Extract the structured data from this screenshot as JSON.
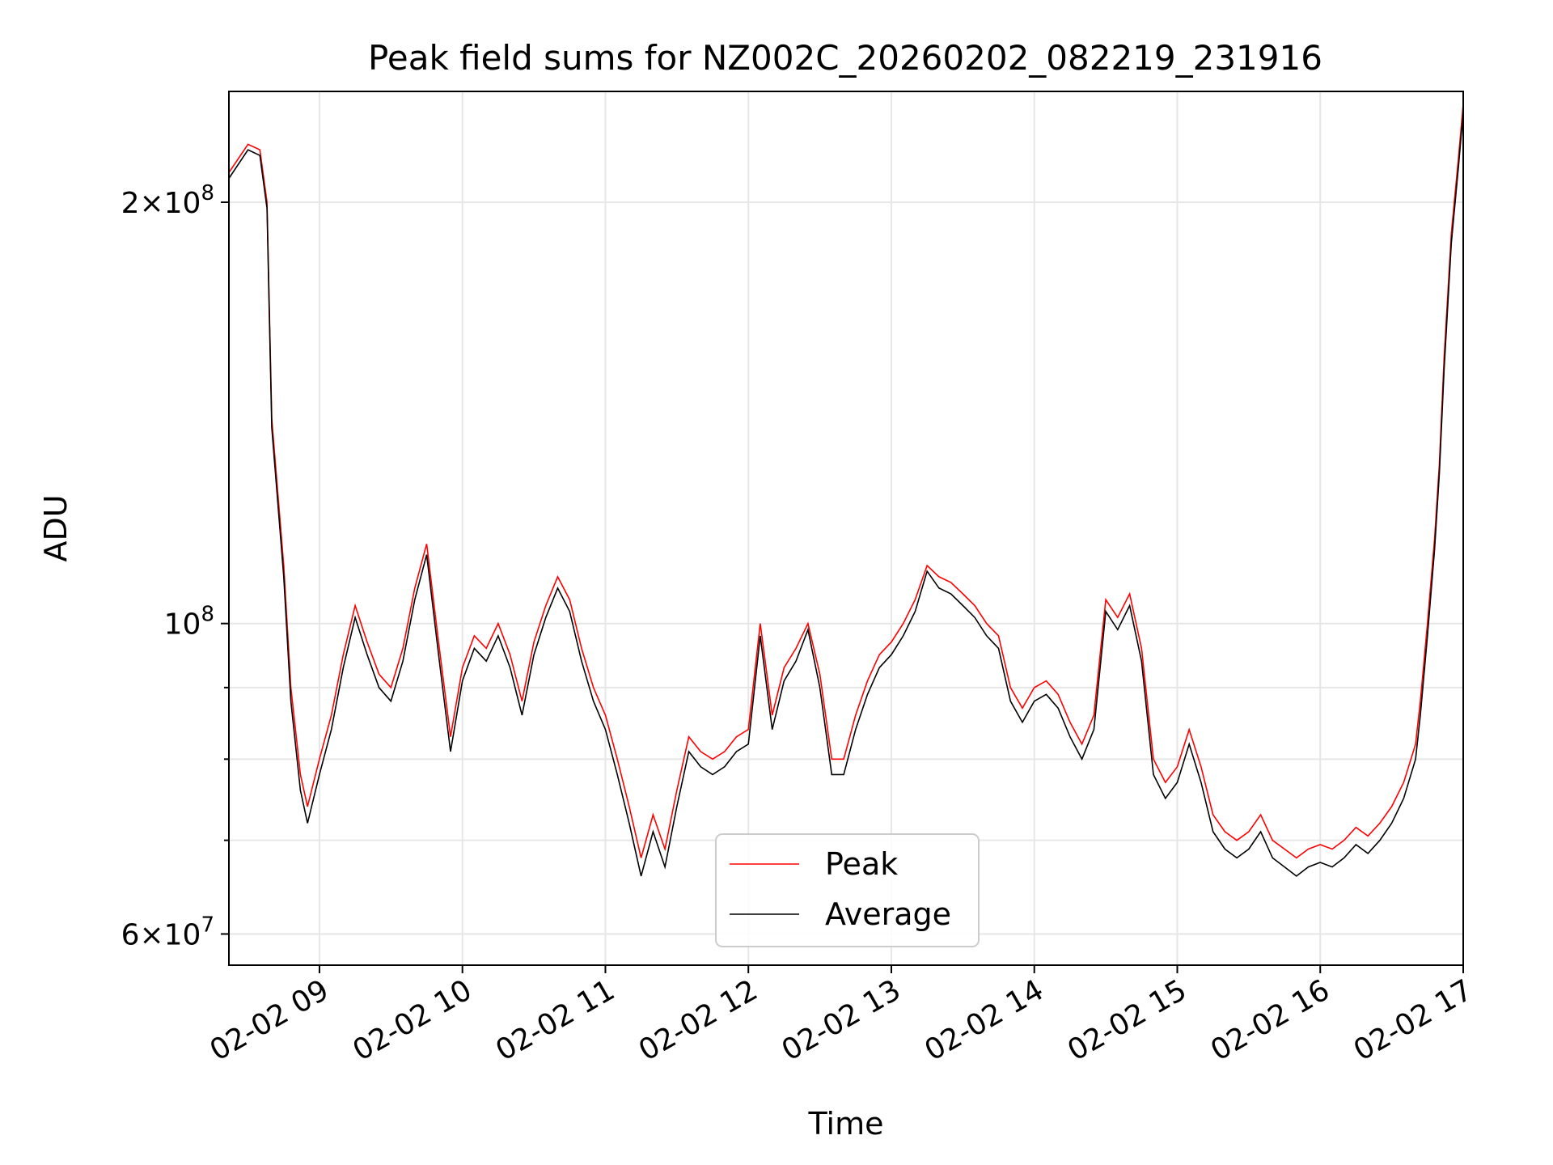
{
  "chart_data": {
    "type": "line",
    "title": "Peak field sums for NZ002C_20260202_082219_231916",
    "xlabel": "Time",
    "ylabel": "ADU",
    "xlim": [
      "2026-02-02 08:22",
      "2026-02-02 17:00"
    ],
    "ylim": [
      57000000,
      240000000
    ],
    "yscale": "log",
    "grid": true,
    "legend_position": "bottom-center",
    "x_tick_labels": [
      "02-02 09",
      "02-02 10",
      "02-02 11",
      "02-02 12",
      "02-02 13",
      "02-02 14",
      "02-02 15",
      "02-02 16",
      "02-02 17"
    ],
    "y_tick_labels": [
      "2×10^8",
      "10^8",
      "6×10^7"
    ],
    "x": [
      "08:22",
      "08:30",
      "08:35",
      "08:38",
      "08:40",
      "08:45",
      "08:48",
      "08:52",
      "08:55",
      "09:00",
      "09:05",
      "09:10",
      "09:15",
      "09:20",
      "09:25",
      "09:30",
      "09:35",
      "09:40",
      "09:45",
      "09:50",
      "09:55",
      "10:00",
      "10:05",
      "10:10",
      "10:15",
      "10:20",
      "10:25",
      "10:30",
      "10:35",
      "10:40",
      "10:45",
      "10:50",
      "10:55",
      "11:00",
      "11:05",
      "11:10",
      "11:15",
      "11:20",
      "11:25",
      "11:30",
      "11:35",
      "11:40",
      "11:45",
      "11:50",
      "11:55",
      "12:00",
      "12:05",
      "12:10",
      "12:15",
      "12:20",
      "12:25",
      "12:30",
      "12:35",
      "12:40",
      "12:45",
      "12:50",
      "12:55",
      "13:00",
      "13:05",
      "13:10",
      "13:15",
      "13:20",
      "13:25",
      "13:30",
      "13:35",
      "13:40",
      "13:45",
      "13:50",
      "13:55",
      "14:00",
      "14:05",
      "14:10",
      "14:15",
      "14:20",
      "14:25",
      "14:30",
      "14:35",
      "14:40",
      "14:45",
      "14:50",
      "14:55",
      "15:00",
      "15:05",
      "15:10",
      "15:15",
      "15:20",
      "15:25",
      "15:30",
      "15:35",
      "15:40",
      "15:45",
      "15:50",
      "15:55",
      "16:00",
      "16:05",
      "16:10",
      "16:15",
      "16:20",
      "16:25",
      "16:30",
      "16:35",
      "16:40",
      "16:42",
      "16:45",
      "16:48",
      "16:50",
      "16:52",
      "16:55",
      "16:58",
      "17:00"
    ],
    "series": [
      {
        "name": "Peak",
        "color": "#ff0000",
        "values": [
          210000000,
          220000000,
          218000000,
          200000000,
          140000000,
          110000000,
          90000000,
          78000000,
          74000000,
          80000000,
          86000000,
          95000000,
          103000000,
          97000000,
          92000000,
          90000000,
          96000000,
          106000000,
          114000000,
          97000000,
          83000000,
          93000000,
          98000000,
          96000000,
          100000000,
          95000000,
          88000000,
          97000000,
          103000000,
          108000000,
          104000000,
          96000000,
          90000000,
          86000000,
          80000000,
          74000000,
          68000000,
          73000000,
          69000000,
          76000000,
          83000000,
          81000000,
          80000000,
          81000000,
          83000000,
          84000000,
          100000000,
          86000000,
          93000000,
          96000000,
          100000000,
          92000000,
          80000000,
          80000000,
          86000000,
          91000000,
          95000000,
          97000000,
          100000000,
          104000000,
          110000000,
          108000000,
          107000000,
          105000000,
          103000000,
          100000000,
          98000000,
          90000000,
          87000000,
          90000000,
          91000000,
          89000000,
          85000000,
          82000000,
          86000000,
          104000000,
          101000000,
          105000000,
          96000000,
          80000000,
          77000000,
          79000000,
          84000000,
          79000000,
          73000000,
          71000000,
          70000000,
          71000000,
          73000000,
          70000000,
          69000000,
          68000000,
          69000000,
          69500000,
          69000000,
          70000000,
          71500000,
          70500000,
          72000000,
          74000000,
          77000000,
          82000000,
          88000000,
          100000000,
          115000000,
          130000000,
          155000000,
          190000000,
          215000000,
          235000000
        ]
      },
      {
        "name": "Average",
        "color": "#000000",
        "values": [
          208000000,
          218000000,
          216000000,
          198000000,
          138000000,
          108000000,
          88000000,
          76000000,
          72000000,
          78000000,
          84000000,
          93000000,
          101000000,
          95000000,
          90000000,
          88000000,
          94000000,
          104000000,
          112000000,
          95000000,
          81000000,
          91000000,
          96000000,
          94000000,
          98000000,
          93000000,
          86000000,
          95000000,
          101000000,
          106000000,
          102000000,
          94000000,
          88000000,
          84000000,
          78000000,
          72000000,
          66000000,
          71000000,
          67000000,
          74000000,
          81000000,
          79000000,
          78000000,
          79000000,
          81000000,
          82000000,
          98000000,
          84000000,
          91000000,
          94000000,
          99000000,
          90000000,
          78000000,
          78000000,
          84000000,
          89000000,
          93000000,
          95000000,
          98000000,
          102000000,
          109000000,
          106000000,
          105000000,
          103000000,
          101000000,
          98000000,
          96000000,
          88000000,
          85000000,
          88000000,
          89000000,
          87000000,
          83000000,
          80000000,
          84000000,
          102000000,
          99000000,
          103000000,
          94000000,
          78000000,
          75000000,
          77000000,
          82000000,
          77000000,
          71000000,
          69000000,
          68000000,
          69000000,
          71000000,
          68000000,
          67000000,
          66000000,
          67000000,
          67500000,
          67000000,
          68000000,
          69500000,
          68500000,
          70000000,
          72000000,
          75000000,
          80000000,
          86000000,
          98000000,
          113000000,
          128000000,
          152000000,
          187000000,
          212000000,
          232000000
        ]
      }
    ]
  }
}
